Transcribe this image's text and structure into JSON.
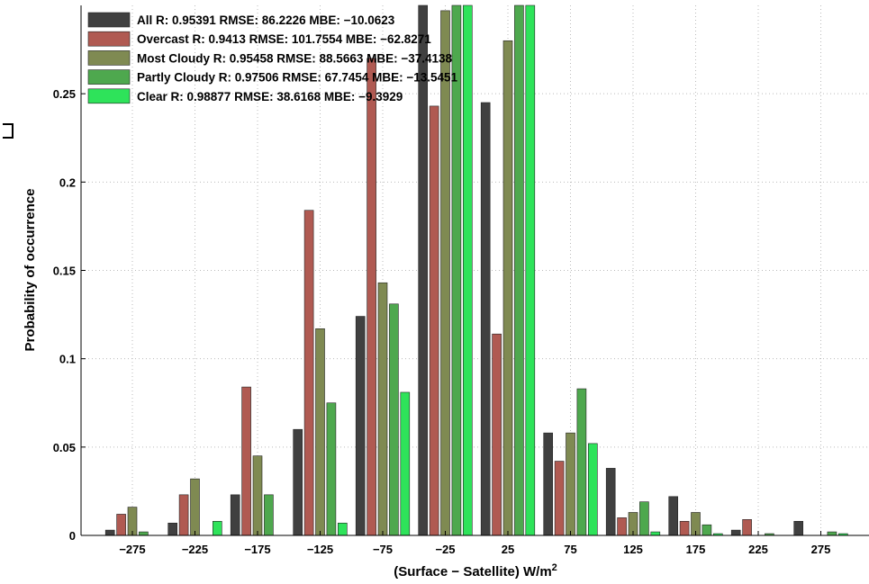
{
  "chart_data": {
    "type": "bar",
    "title": "",
    "xlabel": "(Surface − Satellite) W/m",
    "xlabel_superscript": "2",
    "ylabel": "Probability of occurrence",
    "categories": [
      "−275",
      "−225",
      "−175",
      "−125",
      "−75",
      "−25",
      "25",
      "75",
      "125",
      "175",
      "225",
      "275"
    ],
    "ylim": [
      0,
      0.3
    ],
    "yticks": [
      0,
      0.05,
      0.1,
      0.15,
      0.2,
      0.25
    ],
    "ytick_labels": [
      "0",
      "0.05",
      "0.1",
      "0.15",
      "0.2",
      "0.25"
    ],
    "grid": true,
    "legend_position": "top-left",
    "series": [
      {
        "name": "All",
        "legend_label": "All R: 0.95391 RMSE: 86.2226 MBE: −10.0623",
        "color": "#404040",
        "values": [
          0.003,
          0.007,
          0.023,
          0.06,
          0.124,
          0.31,
          0.245,
          0.058,
          0.038,
          0.022,
          0.003,
          0.008
        ]
      },
      {
        "name": "Overcast",
        "legend_label": "Overcast R: 0.9413 RMSE: 101.7554 MBE: −62.8271",
        "color": "#b05a52",
        "values": [
          0.012,
          0.023,
          0.084,
          0.184,
          0.27,
          0.243,
          0.114,
          0.042,
          0.01,
          0.008,
          0.009,
          0.0
        ]
      },
      {
        "name": "Most Cloudy",
        "legend_label": "Most Cloudy R: 0.95458 RMSE: 88.5663 MBE: −37.4138",
        "color": "#7f8a52",
        "values": [
          0.016,
          0.032,
          0.045,
          0.117,
          0.143,
          0.297,
          0.28,
          0.058,
          0.013,
          0.013,
          0.0,
          0.0
        ]
      },
      {
        "name": "Partly Cloudy",
        "legend_label": "Partly Cloudy R: 0.97506 RMSE: 67.7454 MBE: −13.5451",
        "color": "#4ea84e",
        "values": [
          0.002,
          0.0,
          0.023,
          0.075,
          0.131,
          0.31,
          0.31,
          0.083,
          0.019,
          0.006,
          0.001,
          0.002
        ]
      },
      {
        "name": "Clear",
        "legend_label": "Clear R: 0.98877 RMSE: 38.6168 MBE: −9.3929",
        "color": "#2ee35a",
        "values": [
          0.0,
          0.008,
          0.0,
          0.007,
          0.081,
          0.31,
          0.31,
          0.052,
          0.002,
          0.001,
          0.0,
          0.001
        ]
      }
    ]
  }
}
